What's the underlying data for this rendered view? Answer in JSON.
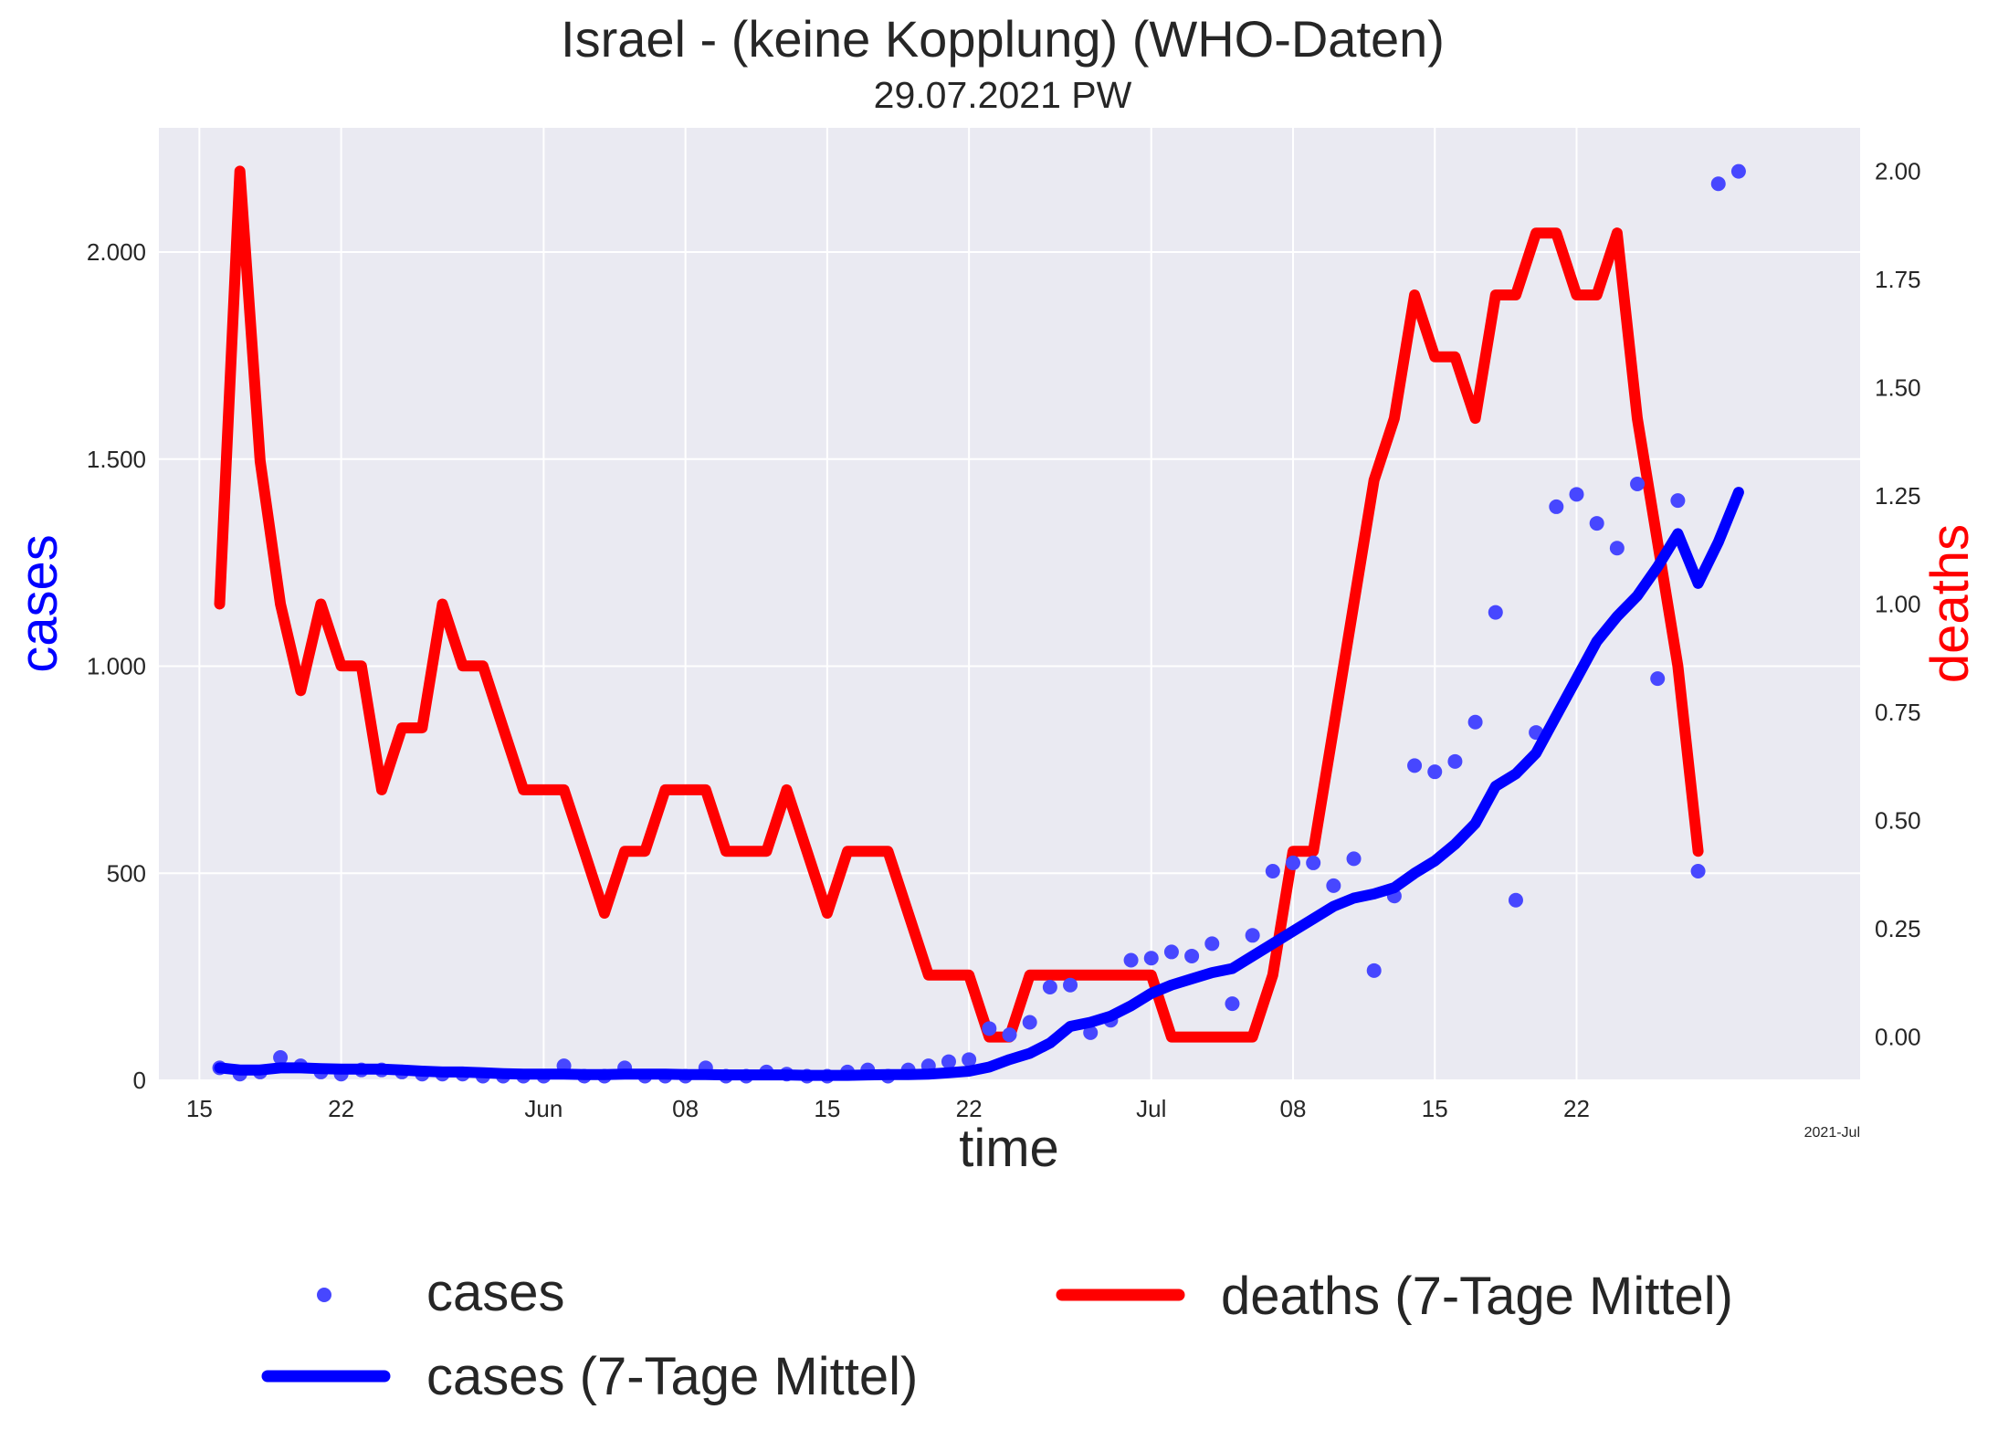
{
  "chart_data": {
    "type": "line",
    "title": "Israel - (keine Kopplung)  (WHO-Daten)",
    "subtitle": "29.07.2021 PW",
    "xlabel": "time",
    "ylabel_left": "cases",
    "ylabel_right": "deaths",
    "x_offset_label": "2021-Jul",
    "x_start": "2021-05-16",
    "x_end": "2021-07-29",
    "xlim": [
      "2021-05-13",
      "2021-08-05"
    ],
    "ylim_left": [
      0,
      2300
    ],
    "ylim_right": [
      -0.1,
      2.1
    ],
    "grid": true,
    "legend_position": "bottom",
    "x_ticks": [
      {
        "date": "2021-05-15",
        "label": "15"
      },
      {
        "date": "2021-05-22",
        "label": "22"
      },
      {
        "date": "2021-06-01",
        "label": "Jun"
      },
      {
        "date": "2021-06-08",
        "label": "08"
      },
      {
        "date": "2021-06-15",
        "label": "15"
      },
      {
        "date": "2021-06-22",
        "label": "22"
      },
      {
        "date": "2021-07-01",
        "label": "Jul"
      },
      {
        "date": "2021-07-08",
        "label": "08"
      },
      {
        "date": "2021-07-15",
        "label": "15"
      },
      {
        "date": "2021-07-22",
        "label": "22"
      }
    ],
    "y_ticks_left": [
      {
        "value": 0,
        "label": "0"
      },
      {
        "value": 500,
        "label": "500"
      },
      {
        "value": 1000,
        "label": "1.000"
      },
      {
        "value": 1500,
        "label": "1.500"
      },
      {
        "value": 2000,
        "label": "2.000"
      }
    ],
    "y_ticks_right": [
      {
        "value": 0,
        "label": "0.00"
      },
      {
        "value": 0.25,
        "label": "0.25"
      },
      {
        "value": 0.5,
        "label": "0.50"
      },
      {
        "value": 0.75,
        "label": "0.75"
      },
      {
        "value": 1.0,
        "label": "1.00"
      },
      {
        "value": 1.25,
        "label": "1.25"
      },
      {
        "value": 1.5,
        "label": "1.50"
      },
      {
        "value": 1.75,
        "label": "1.75"
      },
      {
        "value": 2.0,
        "label": "2.00"
      }
    ],
    "series": [
      {
        "name": "cases",
        "kind": "scatter",
        "axis": "left",
        "color": "#4747ff",
        "values": [
          30,
          15,
          20,
          55,
          35,
          20,
          15,
          25,
          25,
          20,
          15,
          15,
          15,
          10,
          10,
          10,
          10,
          35,
          10,
          10,
          30,
          10,
          10,
          10,
          30,
          10,
          10,
          20,
          15,
          10,
          10,
          20,
          25,
          10,
          25,
          35,
          45,
          50,
          125,
          110,
          140,
          225,
          230,
          115,
          145,
          290,
          295,
          310,
          300,
          330,
          185,
          350,
          505,
          525,
          525,
          470,
          535,
          265,
          445,
          760,
          745,
          770,
          865,
          1130,
          435,
          840,
          1385,
          1415,
          1345,
          1285,
          1440,
          970,
          1400,
          505,
          2165,
          2195
        ]
      },
      {
        "name": "cases (7-Tage Mittel)",
        "kind": "line",
        "axis": "left",
        "color": "#0000ff",
        "values": [
          30,
          25,
          25,
          30,
          30,
          28,
          27,
          27,
          27,
          25,
          22,
          20,
          20,
          18,
          16,
          15,
          15,
          15,
          14,
          14,
          15,
          15,
          15,
          14,
          14,
          13,
          13,
          13,
          13,
          12,
          12,
          12,
          13,
          14,
          14,
          15,
          18,
          22,
          32,
          50,
          65,
          90,
          130,
          140,
          155,
          180,
          210,
          230,
          245,
          260,
          270,
          300,
          330,
          360,
          390,
          420,
          440,
          450,
          465,
          500,
          530,
          570,
          620,
          710,
          740,
          790,
          880,
          970,
          1060,
          1120,
          1170,
          1240,
          1320,
          1200,
          1300,
          1420
        ]
      },
      {
        "name": "deaths (7-Tage Mittel)",
        "kind": "line",
        "axis": "right",
        "color": "#ff0000",
        "values": [
          1.0,
          2.0,
          1.33,
          1.0,
          0.8,
          1.0,
          0.857,
          0.857,
          0.571,
          0.714,
          0.714,
          1.0,
          0.857,
          0.857,
          0.714,
          0.571,
          0.571,
          0.571,
          0.429,
          0.286,
          0.429,
          0.429,
          0.571,
          0.571,
          0.571,
          0.429,
          0.429,
          0.429,
          0.571,
          0.429,
          0.286,
          0.429,
          0.429,
          0.429,
          0.286,
          0.143,
          0.143,
          0.143,
          0.0,
          0.0,
          0.143,
          0.143,
          0.143,
          0.143,
          0.143,
          0.143,
          0.143,
          0.0,
          0.0,
          0.0,
          0.0,
          0.0,
          0.143,
          0.429,
          0.429,
          0.714,
          1.0,
          1.286,
          1.429,
          1.714,
          1.571,
          1.571,
          1.429,
          1.714,
          1.714,
          1.857,
          1.857,
          1.714,
          1.714,
          1.857,
          1.429,
          1.143,
          0.857,
          0.429
        ]
      }
    ]
  }
}
